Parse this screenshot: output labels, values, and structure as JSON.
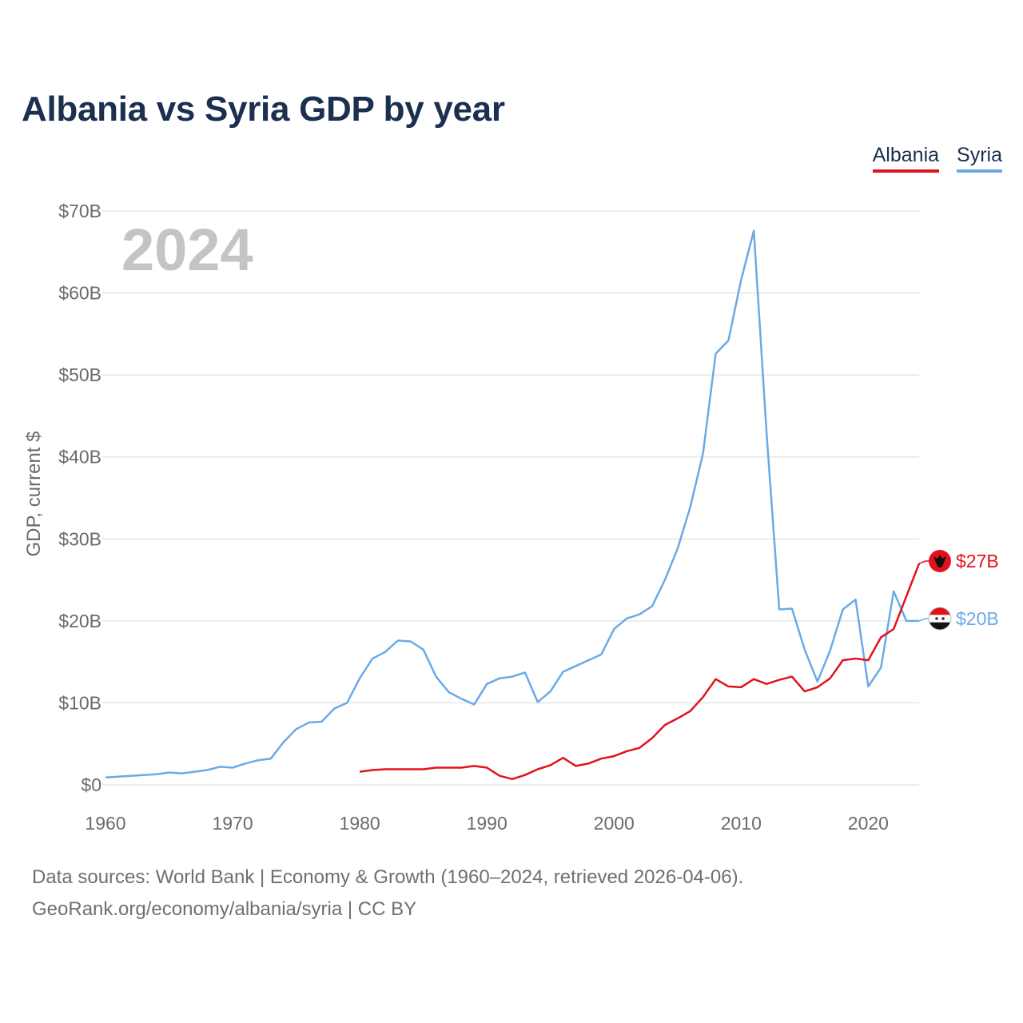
{
  "title": "Albania vs Syria GDP by year",
  "legend": {
    "albania": "Albania",
    "syria": "Syria"
  },
  "footer": {
    "sources": "Data sources: World Bank | Economy & Growth (1960–2024, retrieved 2026-04-06).",
    "credit": "GeoRank.org/economy/albania/syria | CC BY"
  },
  "colors": {
    "albania": "#e3111c",
    "syria": "#6aaae6",
    "year": "#c4c4c4",
    "grid": "#e6e6e6",
    "axis_text": "#6b6b6b"
  },
  "chart_data": {
    "type": "line",
    "title": "Albania vs Syria GDP by year",
    "year_label": "2024",
    "xlabel": "",
    "ylabel": "GDP, current $",
    "xlim": [
      1960,
      2024
    ],
    "ylim": [
      0,
      70
    ],
    "unit": "billion US$",
    "grid": true,
    "legend_position": "top-right",
    "x_ticks": [
      1960,
      1970,
      1980,
      1990,
      2000,
      2010,
      2020
    ],
    "y_ticks": [
      0,
      10,
      20,
      30,
      40,
      50,
      60,
      70
    ],
    "y_tick_labels": [
      "$0",
      "$10B",
      "$20B",
      "$30B",
      "$40B",
      "$50B",
      "$60B",
      "$70B"
    ],
    "series": [
      {
        "name": "Albania",
        "color": "#e3111c",
        "end_label": "$27B",
        "points": [
          [
            1980,
            1.6
          ],
          [
            1981,
            1.8
          ],
          [
            1982,
            1.9
          ],
          [
            1983,
            1.9
          ],
          [
            1984,
            1.9
          ],
          [
            1985,
            1.9
          ],
          [
            1986,
            2.1
          ],
          [
            1987,
            2.1
          ],
          [
            1988,
            2.1
          ],
          [
            1989,
            2.3
          ],
          [
            1990,
            2.1
          ],
          [
            1991,
            1.1
          ],
          [
            1992,
            0.7
          ],
          [
            1993,
            1.2
          ],
          [
            1994,
            1.9
          ],
          [
            1995,
            2.4
          ],
          [
            1996,
            3.3
          ],
          [
            1997,
            2.3
          ],
          [
            1998,
            2.6
          ],
          [
            1999,
            3.2
          ],
          [
            2000,
            3.5
          ],
          [
            2001,
            4.1
          ],
          [
            2002,
            4.5
          ],
          [
            2003,
            5.7
          ],
          [
            2004,
            7.3
          ],
          [
            2005,
            8.1
          ],
          [
            2006,
            9.0
          ],
          [
            2007,
            10.7
          ],
          [
            2008,
            12.9
          ],
          [
            2009,
            12.0
          ],
          [
            2010,
            11.9
          ],
          [
            2011,
            12.9
          ],
          [
            2012,
            12.3
          ],
          [
            2013,
            12.8
          ],
          [
            2014,
            13.2
          ],
          [
            2015,
            11.4
          ],
          [
            2016,
            11.9
          ],
          [
            2017,
            13.0
          ],
          [
            2018,
            15.2
          ],
          [
            2019,
            15.4
          ],
          [
            2020,
            15.2
          ],
          [
            2021,
            18.0
          ],
          [
            2022,
            19.0
          ],
          [
            2023,
            23.0
          ],
          [
            2024,
            27.0
          ]
        ]
      },
      {
        "name": "Syria",
        "color": "#6aaae6",
        "end_label": "$20B",
        "points": [
          [
            1960,
            0.9
          ],
          [
            1961,
            1.0
          ],
          [
            1962,
            1.1
          ],
          [
            1963,
            1.2
          ],
          [
            1964,
            1.3
          ],
          [
            1965,
            1.5
          ],
          [
            1966,
            1.4
          ],
          [
            1967,
            1.6
          ],
          [
            1968,
            1.8
          ],
          [
            1969,
            2.2
          ],
          [
            1970,
            2.1
          ],
          [
            1971,
            2.6
          ],
          [
            1972,
            3.0
          ],
          [
            1973,
            3.2
          ],
          [
            1974,
            5.2
          ],
          [
            1975,
            6.8
          ],
          [
            1976,
            7.6
          ],
          [
            1977,
            7.7
          ],
          [
            1978,
            9.3
          ],
          [
            1979,
            10.0
          ],
          [
            1980,
            13.0
          ],
          [
            1981,
            15.4
          ],
          [
            1982,
            16.2
          ],
          [
            1983,
            17.6
          ],
          [
            1984,
            17.5
          ],
          [
            1985,
            16.5
          ],
          [
            1986,
            13.2
          ],
          [
            1987,
            11.3
          ],
          [
            1988,
            10.5
          ],
          [
            1989,
            9.8
          ],
          [
            1990,
            12.3
          ],
          [
            1991,
            13.0
          ],
          [
            1992,
            13.2
          ],
          [
            1993,
            13.7
          ],
          [
            1994,
            10.1
          ],
          [
            1995,
            11.4
          ],
          [
            1996,
            13.8
          ],
          [
            1997,
            14.5
          ],
          [
            1998,
            15.2
          ],
          [
            1999,
            15.9
          ],
          [
            2000,
            19.0
          ],
          [
            2001,
            20.3
          ],
          [
            2002,
            20.8
          ],
          [
            2003,
            21.8
          ],
          [
            2004,
            25.0
          ],
          [
            2005,
            28.8
          ],
          [
            2006,
            33.9
          ],
          [
            2007,
            40.4
          ],
          [
            2008,
            52.6
          ],
          [
            2009,
            54.2
          ],
          [
            2010,
            61.6
          ],
          [
            2011,
            67.6
          ],
          [
            2012,
            43.0
          ],
          [
            2013,
            21.4
          ],
          [
            2014,
            21.5
          ],
          [
            2015,
            16.5
          ],
          [
            2016,
            12.6
          ],
          [
            2017,
            16.4
          ],
          [
            2018,
            21.4
          ],
          [
            2019,
            22.6
          ],
          [
            2020,
            12.0
          ],
          [
            2021,
            14.3
          ],
          [
            2022,
            23.6
          ],
          [
            2023,
            20.0
          ],
          [
            2024,
            20.0
          ]
        ]
      }
    ]
  }
}
